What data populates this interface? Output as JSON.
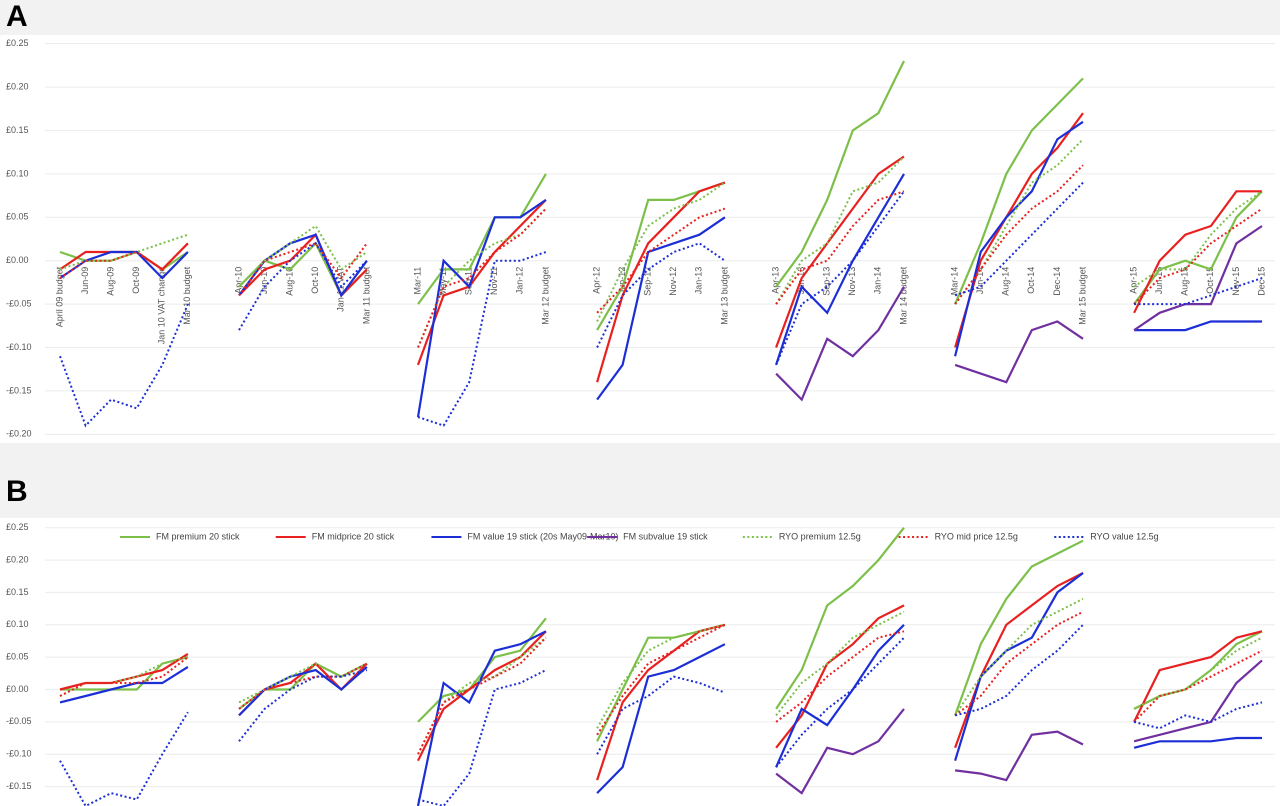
{
  "chart_data": [
    {
      "type": "line",
      "title": "A",
      "grid": true,
      "categories": [
        "April 09 budget",
        "Jun-09",
        "Aug-09",
        "Oct-09",
        "Jan 10 VAT change",
        "Mar 10 budget",
        null,
        "Apr-10",
        "Jun-10",
        "Aug-10",
        "Oct-10",
        "Jan 11 VAT",
        "Mar 11 budget",
        null,
        "Mar-11",
        "May-11",
        "Sep-11",
        "Nov-11",
        "Jan-12",
        "Mar 12 budget",
        null,
        "Apr-12",
        "Jun-12",
        "Sep-12",
        "Nov-12",
        "Jan-13",
        "Mar 13 budget",
        null,
        "Apr-13",
        "Jun-13",
        "Sep-13",
        "Nov-13",
        "Jan-14",
        "Mar 14 budget",
        null,
        "Mar-14",
        "Jun-14",
        "Aug-14",
        "Oct-14",
        "Dec-14",
        "Mar 15 budget",
        null,
        "Apr-15",
        "Jun-15",
        "Aug-15",
        "Oct-15",
        "Nov-15",
        "Dec-15"
      ],
      "ylim": [
        -0.21,
        0.26
      ],
      "yticks": [
        {
          "value": 0.25,
          "label": "£0.25"
        },
        {
          "value": 0.2,
          "label": "£0.20"
        },
        {
          "value": 0.15,
          "label": "£0.15"
        },
        {
          "value": 0.1,
          "label": "£0.10"
        },
        {
          "value": 0.05,
          "label": "£0.05"
        },
        {
          "value": 0,
          "label": "£0.00"
        },
        {
          "value": -0.05,
          "label": "-£0.05"
        },
        {
          "value": -0.1,
          "label": "-£0.10"
        },
        {
          "value": -0.15,
          "label": "-£0.15"
        },
        {
          "value": -0.2,
          "label": "-£0.20"
        }
      ],
      "series": [
        {
          "color": "#7cc04a",
          "style": "solid",
          "values": [
            0.01,
            0.0,
            0.0,
            0.01,
            -0.01,
            0.01,
            null,
            -0.03,
            0.0,
            -0.01,
            0.02,
            -0.04,
            -0.01,
            null,
            -0.05,
            -0.01,
            -0.01,
            0.05,
            0.05,
            0.1,
            null,
            -0.08,
            -0.03,
            0.07,
            0.07,
            0.08,
            0.09,
            null,
            -0.03,
            0.01,
            0.07,
            0.15,
            0.17,
            0.23,
            null,
            -0.05,
            0.02,
            0.1,
            0.15,
            0.18,
            0.21,
            null,
            -0.05,
            -0.01,
            0.0,
            -0.01,
            0.05,
            0.08
          ]
        },
        {
          "color": "#e8201f",
          "style": "solid",
          "values": [
            -0.01,
            0.01,
            0.01,
            0.01,
            -0.01,
            0.02,
            null,
            -0.04,
            -0.01,
            0.0,
            0.03,
            -0.04,
            -0.01,
            null,
            -0.12,
            -0.04,
            -0.03,
            0.01,
            0.04,
            0.07,
            null,
            -0.14,
            -0.04,
            0.02,
            0.05,
            0.08,
            0.09,
            null,
            -0.1,
            -0.02,
            0.02,
            0.06,
            0.1,
            0.12,
            null,
            -0.1,
            0.0,
            0.05,
            0.1,
            0.13,
            0.17,
            null,
            -0.06,
            0.0,
            0.03,
            0.04,
            0.08,
            0.08
          ]
        },
        {
          "color": "#1c2fd6",
          "style": "solid",
          "values": [
            -0.02,
            0.0,
            0.01,
            0.01,
            -0.02,
            0.01,
            null,
            -0.04,
            0.0,
            0.02,
            0.03,
            -0.04,
            0.0,
            null,
            -0.18,
            0.0,
            -0.03,
            0.05,
            0.05,
            0.07,
            null,
            -0.16,
            -0.12,
            0.01,
            0.02,
            0.03,
            0.05,
            null,
            -0.12,
            -0.03,
            -0.06,
            0.0,
            0.05,
            0.1,
            null,
            -0.11,
            0.01,
            0.05,
            0.08,
            0.14,
            0.16,
            null,
            -0.08,
            -0.08,
            -0.08,
            -0.07,
            -0.07,
            -0.07
          ]
        },
        {
          "color": "#7030a0",
          "style": "solid",
          "values": [
            null,
            null,
            null,
            null,
            null,
            null,
            null,
            null,
            null,
            null,
            null,
            null,
            null,
            null,
            null,
            null,
            null,
            null,
            null,
            null,
            null,
            null,
            null,
            null,
            null,
            null,
            null,
            null,
            -0.13,
            -0.16,
            -0.09,
            -0.11,
            -0.08,
            -0.03,
            null,
            -0.12,
            -0.13,
            -0.14,
            -0.08,
            -0.07,
            -0.09,
            null,
            -0.08,
            -0.06,
            -0.05,
            -0.05,
            0.02,
            0.04
          ]
        },
        {
          "color": "#7cc04a",
          "style": "dotted",
          "values": [
            -0.01,
            0.0,
            0.0,
            0.01,
            0.02,
            0.03,
            null,
            -0.03,
            0.0,
            0.02,
            0.04,
            -0.01,
            0.01,
            null,
            -0.1,
            -0.03,
            0.0,
            0.02,
            0.03,
            0.06,
            null,
            -0.07,
            -0.01,
            0.04,
            0.06,
            0.07,
            0.09,
            null,
            -0.05,
            0.0,
            0.02,
            0.08,
            0.09,
            0.12,
            null,
            -0.05,
            -0.01,
            0.04,
            0.09,
            0.11,
            0.14,
            null,
            -0.03,
            -0.01,
            -0.01,
            0.03,
            0.06,
            0.08
          ]
        },
        {
          "color": "#e8201f",
          "style": "dotted",
          "values": [
            -0.02,
            0.0,
            0.0,
            0.01,
            -0.01,
            0.02,
            null,
            -0.04,
            0.0,
            0.01,
            0.02,
            -0.02,
            0.02,
            null,
            -0.1,
            -0.03,
            -0.02,
            0.01,
            0.03,
            0.06,
            null,
            -0.06,
            -0.03,
            0.01,
            0.03,
            0.05,
            0.06,
            null,
            -0.05,
            -0.01,
            0.0,
            0.04,
            0.07,
            0.08,
            null,
            -0.05,
            -0.01,
            0.03,
            0.06,
            0.08,
            0.11,
            null,
            -0.05,
            -0.02,
            -0.01,
            0.02,
            0.04,
            0.06
          ]
        },
        {
          "color": "#1c2fd6",
          "style": "dotted",
          "values": [
            -0.11,
            -0.19,
            -0.16,
            -0.17,
            -0.12,
            -0.05,
            null,
            -0.08,
            -0.03,
            0.0,
            0.02,
            -0.03,
            0.0,
            null,
            -0.18,
            -0.19,
            -0.14,
            0.0,
            0.0,
            0.01,
            null,
            -0.1,
            -0.04,
            -0.01,
            0.01,
            0.02,
            0.0,
            null,
            -0.12,
            -0.05,
            -0.03,
            0.0,
            0.04,
            0.08,
            null,
            -0.04,
            -0.03,
            0.0,
            0.03,
            0.06,
            0.09,
            null,
            -0.05,
            -0.05,
            -0.05,
            -0.04,
            -0.03,
            -0.02
          ]
        }
      ]
    },
    {
      "type": "line",
      "title": "B",
      "grid": true,
      "legend": "top",
      "categories": [
        null,
        null,
        null,
        null,
        null,
        null,
        null,
        null,
        null,
        null,
        null,
        null,
        null,
        null,
        null,
        null,
        null,
        null,
        null,
        null,
        null,
        null,
        null,
        null,
        null,
        null,
        null,
        null,
        null,
        null,
        null,
        null,
        null,
        null,
        null,
        null,
        null,
        null,
        null,
        null,
        null,
        null,
        null,
        null,
        null,
        null,
        null,
        null
      ],
      "ylim": [
        -0.18,
        0.265
      ],
      "yticks": [
        {
          "value": 0.25,
          "label": "£0.25"
        },
        {
          "value": 0.2,
          "label": "£0.20"
        },
        {
          "value": 0.15,
          "label": "£0.15"
        },
        {
          "value": 0.1,
          "label": "£0.10"
        },
        {
          "value": 0.05,
          "label": "£0.05"
        },
        {
          "value": 0,
          "label": "£0.00"
        },
        {
          "value": -0.05,
          "label": "-£0.05"
        },
        {
          "value": -0.1,
          "label": "-£0.10"
        },
        {
          "value": -0.15,
          "label": "-£0.15"
        }
      ],
      "series": [
        {
          "name": "FM premium 20 stick",
          "color": "#7cc04a",
          "style": "solid",
          "values": [
            0.0,
            0.0,
            0.0,
            0.0,
            0.04,
            0.05,
            null,
            -0.03,
            0.0,
            0.0,
            0.04,
            0.02,
            0.04,
            null,
            -0.05,
            -0.01,
            0.0,
            0.05,
            0.06,
            0.11,
            null,
            -0.08,
            0.0,
            0.08,
            0.08,
            0.09,
            0.1,
            null,
            -0.03,
            0.03,
            0.13,
            0.16,
            0.2,
            0.25,
            null,
            -0.04,
            0.07,
            0.14,
            0.19,
            0.21,
            0.23,
            null,
            -0.03,
            -0.01,
            0.0,
            0.03,
            0.07,
            0.09
          ]
        },
        {
          "name": "FM midprice 20 stick",
          "color": "#e8201f",
          "style": "solid",
          "values": [
            0.0,
            0.01,
            0.01,
            0.02,
            0.03,
            0.055,
            null,
            -0.04,
            0.0,
            0.01,
            0.04,
            0.0,
            0.04,
            null,
            -0.11,
            -0.03,
            0.0,
            0.03,
            0.05,
            0.09,
            null,
            -0.14,
            -0.02,
            0.03,
            0.06,
            0.09,
            0.1,
            null,
            -0.09,
            -0.04,
            0.04,
            0.07,
            0.11,
            0.13,
            null,
            -0.09,
            0.02,
            0.1,
            0.13,
            0.16,
            0.18,
            null,
            -0.05,
            0.03,
            0.04,
            0.05,
            0.08,
            0.09
          ]
        },
        {
          "name": "FM value 19 stick (20s May09-Mar10)",
          "color": "#1c2fd6",
          "style": "solid",
          "values": [
            -0.02,
            -0.01,
            0.0,
            0.01,
            0.01,
            0.035,
            null,
            -0.04,
            0.0,
            0.02,
            0.03,
            0.0,
            0.035,
            null,
            -0.18,
            0.01,
            -0.02,
            0.06,
            0.07,
            0.09,
            null,
            -0.16,
            -0.12,
            0.02,
            0.03,
            0.05,
            0.07,
            null,
            -0.12,
            -0.03,
            -0.055,
            0.0,
            0.06,
            0.1,
            null,
            -0.11,
            0.02,
            0.06,
            0.08,
            0.15,
            0.18,
            null,
            -0.09,
            -0.08,
            -0.08,
            -0.08,
            -0.075,
            -0.075
          ]
        },
        {
          "name": "FM subvalue 19 stick",
          "color": "#7030a0",
          "style": "solid",
          "values": [
            null,
            null,
            null,
            null,
            null,
            null,
            null,
            null,
            null,
            null,
            null,
            null,
            null,
            null,
            null,
            null,
            null,
            null,
            null,
            null,
            null,
            null,
            null,
            null,
            null,
            null,
            null,
            null,
            -0.13,
            -0.16,
            -0.09,
            -0.1,
            -0.08,
            -0.03,
            null,
            -0.125,
            -0.13,
            -0.14,
            -0.07,
            -0.065,
            -0.085,
            null,
            -0.08,
            -0.07,
            -0.06,
            -0.05,
            0.01,
            0.045
          ]
        },
        {
          "name": "RYO premium 12.5g",
          "color": "#7cc04a",
          "style": "dotted",
          "values": [
            -0.01,
            0.01,
            0.01,
            0.02,
            0.04,
            0.05,
            null,
            -0.02,
            0.0,
            0.02,
            0.04,
            0.02,
            0.04,
            null,
            -0.1,
            -0.02,
            0.01,
            0.02,
            0.05,
            0.08,
            null,
            -0.06,
            0.01,
            0.06,
            0.08,
            0.09,
            0.1,
            null,
            -0.04,
            0.01,
            0.04,
            0.08,
            0.1,
            0.12,
            null,
            -0.04,
            0.02,
            0.06,
            0.1,
            0.12,
            0.14,
            null,
            -0.03,
            -0.01,
            0.0,
            0.03,
            0.06,
            0.08
          ]
        },
        {
          "name": "RYO mid price 12.5g",
          "color": "#e8201f",
          "style": "dotted",
          "values": [
            -0.01,
            0.01,
            0.01,
            0.01,
            0.02,
            0.05,
            null,
            -0.03,
            0.0,
            0.01,
            0.02,
            0.02,
            0.04,
            null,
            -0.1,
            -0.02,
            0.0,
            0.02,
            0.04,
            0.08,
            null,
            -0.07,
            -0.01,
            0.04,
            0.06,
            0.08,
            0.1,
            null,
            -0.05,
            -0.02,
            0.02,
            0.05,
            0.08,
            0.09,
            null,
            -0.04,
            -0.01,
            0.04,
            0.07,
            0.1,
            0.12,
            null,
            -0.05,
            -0.01,
            0.0,
            0.02,
            0.04,
            0.06
          ]
        },
        {
          "name": "RYO value 12.5g",
          "color": "#1c2fd6",
          "style": "dotted",
          "values": [
            -0.11,
            -0.18,
            -0.16,
            -0.17,
            -0.1,
            -0.035,
            null,
            -0.08,
            -0.03,
            0.0,
            0.02,
            0.02,
            0.03,
            null,
            -0.17,
            -0.18,
            -0.13,
            0.0,
            0.01,
            0.03,
            null,
            -0.1,
            -0.03,
            -0.01,
            0.02,
            0.01,
            -0.005,
            null,
            -0.12,
            -0.07,
            -0.03,
            0.0,
            0.04,
            0.08,
            null,
            -0.04,
            -0.03,
            -0.01,
            0.03,
            0.06,
            0.1,
            null,
            -0.05,
            -0.06,
            -0.04,
            -0.05,
            -0.03,
            -0.02
          ]
        }
      ]
    }
  ]
}
